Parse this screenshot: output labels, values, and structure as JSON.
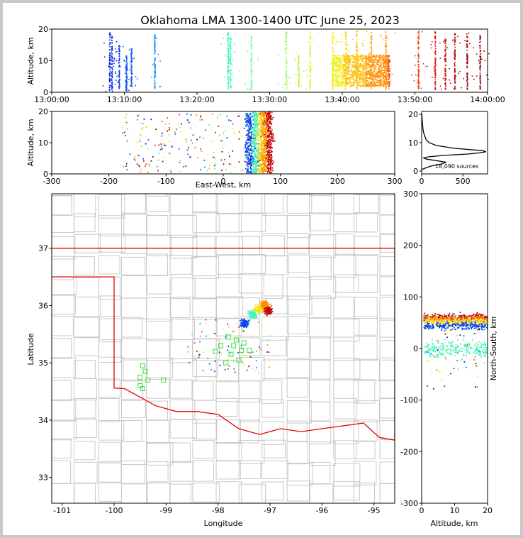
{
  "chart_data": [
    {
      "type": "scatter",
      "panel": "altitude-time",
      "title": "Oklahoma LMA 1300-1400 UTC June 25, 2023",
      "xlabel": "",
      "ylabel": "Altitude, km",
      "xlim": [
        0,
        60
      ],
      "ylim": [
        0,
        20
      ],
      "xticks": [
        0,
        10,
        20,
        30,
        40,
        50,
        60
      ],
      "xticklabels": [
        "13:00:00",
        "13:10:00",
        "13:20:00",
        "13:30:00",
        "13:40:00",
        "13:50:00",
        "14:00:00"
      ],
      "yticks": [
        0,
        10,
        20
      ],
      "bursts": [
        {
          "t": 8.0,
          "lo": 0.5,
          "hi": 19.5,
          "color": "#0a1dd9"
        },
        {
          "t": 8.3,
          "lo": 0.5,
          "hi": 18.5,
          "color": "#0a2fe0"
        },
        {
          "t": 9.3,
          "lo": 1.0,
          "hi": 15.0,
          "color": "#0b3ee8"
        },
        {
          "t": 10.3,
          "lo": 0.5,
          "hi": 12.0,
          "color": "#0b52ef"
        },
        {
          "t": 11.0,
          "lo": 2.0,
          "hi": 14.0,
          "color": "#0a63f3"
        },
        {
          "t": 14.2,
          "lo": 1.0,
          "hi": 19.0,
          "color": "#0c8ef7"
        },
        {
          "t": 24.3,
          "lo": 1.0,
          "hi": 19.5,
          "color": "#36f0c6"
        },
        {
          "t": 24.6,
          "lo": 1.5,
          "hi": 18.0,
          "color": "#4af5b5"
        },
        {
          "t": 27.5,
          "lo": 1.0,
          "hi": 18.0,
          "color": "#6ef79a"
        },
        {
          "t": 32.3,
          "lo": 1.0,
          "hi": 19.5,
          "color": "#a8f560"
        },
        {
          "t": 34.0,
          "lo": 2.0,
          "hi": 12.0,
          "color": "#c0f548"
        },
        {
          "t": 35.6,
          "lo": 1.0,
          "hi": 19.5,
          "color": "#d6f536"
        },
        {
          "t": 38.7,
          "lo": 1.0,
          "hi": 19.5,
          "color": "#f0f018"
        },
        {
          "t": 40.5,
          "lo": 1.0,
          "hi": 19.5,
          "color": "#f8d810"
        },
        {
          "t": 42.0,
          "lo": 1.0,
          "hi": 19.5,
          "color": "#fcc00b"
        },
        {
          "t": 44.0,
          "lo": 1.0,
          "hi": 19.5,
          "color": "#fea806"
        },
        {
          "t": 46.0,
          "lo": 1.0,
          "hi": 19.5,
          "color": "#ff8f04"
        },
        {
          "t": 50.5,
          "lo": 1.0,
          "hi": 19.5,
          "color": "#ee3a06"
        },
        {
          "t": 52.8,
          "lo": 1.0,
          "hi": 19.5,
          "color": "#d81a07"
        },
        {
          "t": 54.2,
          "lo": 1.0,
          "hi": 17.0,
          "color": "#c60d09"
        },
        {
          "t": 55.5,
          "lo": 1.0,
          "hi": 19.0,
          "color": "#b3090a"
        },
        {
          "t": 57.2,
          "lo": 1.0,
          "hi": 19.0,
          "color": "#a0080a"
        },
        {
          "t": 59.0,
          "lo": 1.0,
          "hi": 19.5,
          "color": "#8c0707"
        }
      ],
      "dense_band": [
        {
          "t0": 38.5,
          "t1": 46.5,
          "lo": 2.0,
          "hi": 12.0
        }
      ]
    },
    {
      "type": "scatter",
      "panel": "altitude-eastwest",
      "xlabel": "East-West, km",
      "ylabel": "Altitude, km",
      "xlim": [
        -300,
        300
      ],
      "ylim": [
        0,
        20
      ],
      "xticks": [
        -300,
        -200,
        -100,
        0,
        100,
        200,
        300
      ],
      "yticks": [
        0,
        10,
        20
      ],
      "core": [
        {
          "x": 45,
          "w": 12,
          "color": "#0b45ee"
        },
        {
          "x": 55,
          "w": 10,
          "color": "#44f2bd"
        },
        {
          "x": 65,
          "w": 10,
          "color": "#f6e216"
        },
        {
          "x": 72,
          "w": 10,
          "color": "#ff8f04"
        },
        {
          "x": 80,
          "w": 10,
          "color": "#c00b0a"
        }
      ]
    },
    {
      "type": "line",
      "panel": "altitude-histogram",
      "annotation": "18,090 sources",
      "xlim": [
        0,
        800
      ],
      "ylim": [
        -1,
        21
      ],
      "xticks": [
        0,
        500
      ],
      "yticks": [
        0,
        10,
        20
      ],
      "x": [
        0,
        40,
        120,
        240,
        300,
        150,
        60,
        25,
        80,
        260,
        560,
        700,
        780,
        740,
        400,
        180,
        90,
        55,
        35,
        20,
        12,
        6,
        3
      ],
      "y": [
        0.5,
        1.0,
        1.8,
        2.5,
        3.1,
        3.8,
        4.2,
        4.6,
        5.0,
        5.5,
        6.0,
        6.4,
        6.8,
        7.2,
        8.0,
        9.0,
        10.0,
        11.0,
        12.5,
        14.0,
        16.0,
        18.0,
        20.0
      ]
    },
    {
      "type": "scatter",
      "panel": "plan-view",
      "xlabel": "Longitude",
      "ylabel": "Latitude",
      "xlim": [
        -101.2,
        -94.6
      ],
      "ylim": [
        32.55,
        37.95
      ],
      "xticks": [
        -101,
        -100,
        -99,
        -98,
        -97,
        -96,
        -95
      ],
      "yticks": [
        33,
        34,
        35,
        36,
        37
      ],
      "stations": [
        [
          -97.8,
          35.45
        ],
        [
          -97.95,
          35.3
        ],
        [
          -97.7,
          35.3
        ],
        [
          -97.55,
          35.22
        ],
        [
          -97.85,
          35.0
        ],
        [
          -97.75,
          35.15
        ],
        [
          -97.5,
          35.35
        ],
        [
          -97.65,
          35.4
        ],
        [
          -99.45,
          34.95
        ],
        [
          -99.4,
          34.85
        ],
        [
          -99.5,
          34.75
        ],
        [
          -99.35,
          34.7
        ],
        [
          -99.05,
          34.7
        ],
        [
          -99.5,
          34.6
        ],
        [
          -99.45,
          34.55
        ],
        [
          -98.05,
          35.2
        ],
        [
          -97.4,
          35.22
        ],
        [
          -97.6,
          35.05
        ]
      ],
      "line_core": [
        {
          "lon": -97.5,
          "lat": 35.7,
          "color": "#0b45ee"
        },
        {
          "lon": -97.35,
          "lat": 35.85,
          "color": "#44f2bd"
        },
        {
          "lon": -97.22,
          "lat": 35.95,
          "color": "#f6e216"
        },
        {
          "lon": -97.1,
          "lat": 36.02,
          "color": "#ff8f04"
        },
        {
          "lon": -97.05,
          "lat": 35.92,
          "color": "#c00b0a"
        }
      ]
    },
    {
      "type": "scatter",
      "panel": "northsouth-altitude",
      "xlabel": "Altitude, km",
      "ylabel": "North-South, km",
      "xlim": [
        0,
        20
      ],
      "ylim": [
        -300,
        300
      ],
      "xticks": [
        0,
        10,
        20
      ],
      "yticks": [
        -300,
        -200,
        -100,
        0,
        100,
        200,
        300
      ]
    }
  ]
}
